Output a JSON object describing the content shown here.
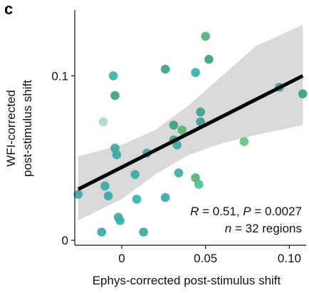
{
  "panel_label": "c",
  "colors": {
    "points": [
      "#3aa9a6",
      "#2fb5ad",
      "#3b9f8e",
      "#52b473",
      "#49c19a",
      "#a7dcc4",
      "#64c47a"
    ],
    "fit_line": "#000000",
    "ci_band": "#d9d9d9",
    "axis": "#111111"
  },
  "chart_data": {
    "type": "scatter",
    "xlabel": "Ephys-corrected post-stimulus shift",
    "ylabel_line1": "WFI-corrected",
    "ylabel_line2": "post-stimulus shift",
    "xlim": [
      -0.028,
      0.11
    ],
    "ylim": [
      -0.003,
      0.14
    ],
    "x_ticks": [
      {
        "value": 0,
        "label": "0"
      },
      {
        "value": 0.05,
        "label": "0.05"
      },
      {
        "value": 0.1,
        "label": "0.10"
      }
    ],
    "y_ticks": [
      {
        "value": 0,
        "label": "0"
      },
      {
        "value": 0.1,
        "label": "0.1"
      }
    ],
    "annotation_line1": "R = 0.51, P = 0.0027",
    "annotation_line2": "n = 32 regions",
    "fit": {
      "x0": -0.026,
      "y0": 0.031,
      "x1": 0.108,
      "y1": 0.1
    },
    "ci_band": {
      "x": [
        -0.026,
        0.0,
        0.02,
        0.04,
        0.06,
        0.08,
        0.108
      ],
      "upper": [
        0.051,
        0.058,
        0.067,
        0.082,
        0.1,
        0.118,
        0.131
      ],
      "lower": [
        0.012,
        0.025,
        0.04,
        0.052,
        0.059,
        0.064,
        0.07
      ]
    },
    "points": [
      {
        "x": -0.026,
        "y": 0.028,
        "c": 0
      },
      {
        "x": -0.012,
        "y": 0.005,
        "c": 0
      },
      {
        "x": -0.01,
        "y": 0.033,
        "c": 0
      },
      {
        "x": -0.011,
        "y": 0.072,
        "c": 5
      },
      {
        "x": -0.008,
        "y": 0.027,
        "c": 0
      },
      {
        "x": -0.005,
        "y": 0.1,
        "c": 1
      },
      {
        "x": -0.004,
        "y": 0.088,
        "c": 2
      },
      {
        "x": -0.004,
        "y": 0.056,
        "c": 0
      },
      {
        "x": -0.003,
        "y": 0.052,
        "c": 0
      },
      {
        "x": -0.002,
        "y": 0.014,
        "c": 0
      },
      {
        "x": -0.001,
        "y": 0.012,
        "c": 1
      },
      {
        "x": 0.008,
        "y": 0.04,
        "c": 0
      },
      {
        "x": 0.009,
        "y": 0.025,
        "c": 1
      },
      {
        "x": 0.013,
        "y": 0.005,
        "c": 0
      },
      {
        "x": 0.015,
        "y": 0.053,
        "c": 0
      },
      {
        "x": 0.026,
        "y": 0.104,
        "c": 2
      },
      {
        "x": 0.026,
        "y": 0.026,
        "c": 0
      },
      {
        "x": 0.031,
        "y": 0.061,
        "c": 2
      },
      {
        "x": 0.031,
        "y": 0.07,
        "c": 2
      },
      {
        "x": 0.033,
        "y": 0.058,
        "c": 0
      },
      {
        "x": 0.034,
        "y": 0.041,
        "c": 0
      },
      {
        "x": 0.036,
        "y": 0.067,
        "c": 3
      },
      {
        "x": 0.044,
        "y": 0.038,
        "c": 3
      },
      {
        "x": 0.044,
        "y": 0.102,
        "c": 1
      },
      {
        "x": 0.046,
        "y": 0.034,
        "c": 4
      },
      {
        "x": 0.047,
        "y": 0.078,
        "c": 2
      },
      {
        "x": 0.047,
        "y": 0.072,
        "c": 2
      },
      {
        "x": 0.05,
        "y": 0.124,
        "c": 3
      },
      {
        "x": 0.052,
        "y": 0.11,
        "c": 2
      },
      {
        "x": 0.073,
        "y": 0.06,
        "c": 6
      },
      {
        "x": 0.094,
        "y": 0.093,
        "c": 2
      },
      {
        "x": 0.108,
        "y": 0.089,
        "c": 2
      }
    ]
  }
}
